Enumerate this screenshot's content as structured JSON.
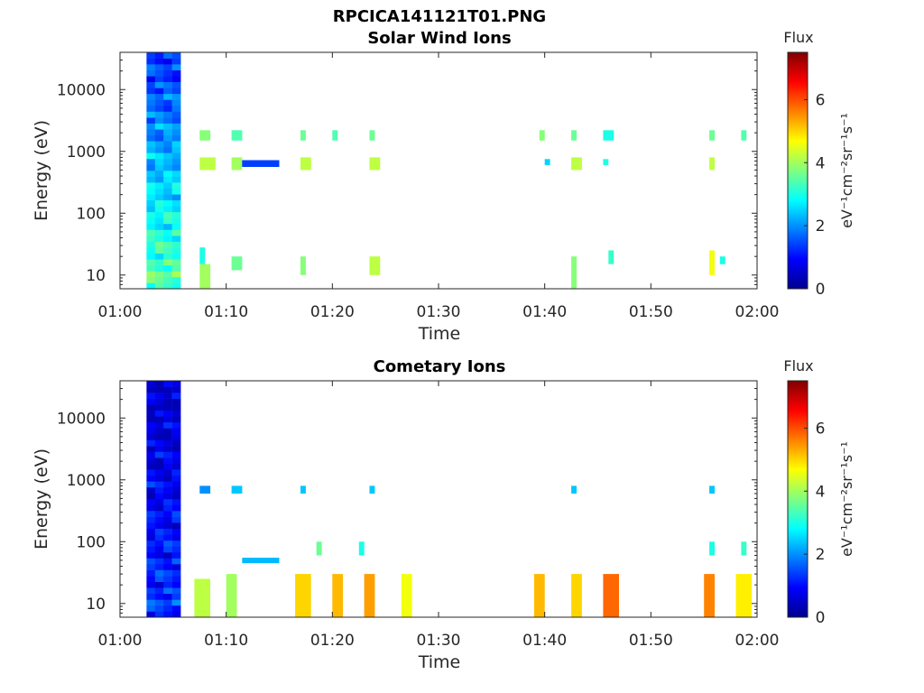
{
  "figure": {
    "title": "RPCICA141121T01.PNG"
  },
  "chart_data": [
    {
      "type": "heatmap",
      "title": "Solar Wind Ions",
      "xlabel": "Time",
      "ylabel": "Energy (eV)",
      "x_ticks": [
        "01:00",
        "01:10",
        "01:20",
        "01:30",
        "01:40",
        "01:50",
        "02:00"
      ],
      "y_ticks": [
        "10",
        "100",
        "1000",
        "10000"
      ],
      "y_scale": "log",
      "xlim": [
        "01:00",
        "02:00"
      ],
      "ylim": [
        6,
        40000
      ],
      "colorbar": {
        "label_top": "Flux",
        "units": "eV⁻¹cm⁻²sr⁻¹s⁻¹",
        "range": [
          0,
          7.5
        ],
        "ticks": [
          "0",
          "2",
          "4",
          "6"
        ],
        "colormap": "jet"
      },
      "cells": [
        {
          "t0": "01:02.5",
          "t1": "01:05.7",
          "e0": 6,
          "e1": 40000,
          "v": 2.6,
          "kind": "column"
        },
        {
          "t0": "01:07.5",
          "t1": "01:09",
          "e0": 500,
          "e1": 800,
          "v": 4.2
        },
        {
          "t0": "01:07.5",
          "t1": "01:08.5",
          "e0": 1500,
          "e1": 2200,
          "v": 3.8
        },
        {
          "t0": "01:10.5",
          "t1": "01:11.5",
          "e0": 500,
          "e1": 800,
          "v": 4.0
        },
        {
          "t0": "01:10.5",
          "t1": "01:11.5",
          "e0": 1500,
          "e1": 2200,
          "v": 3.4
        },
        {
          "t0": "01:11.5",
          "t1": "01:15",
          "e0": 560,
          "e1": 720,
          "v": 1.4
        },
        {
          "t0": "01:17",
          "t1": "01:18",
          "e0": 500,
          "e1": 800,
          "v": 4.2
        },
        {
          "t0": "01:17",
          "t1": "01:17.5",
          "e0": 1500,
          "e1": 2200,
          "v": 3.6
        },
        {
          "t0": "01:20",
          "t1": "01:20.5",
          "e0": 1500,
          "e1": 2200,
          "v": 3.4
        },
        {
          "t0": "01:23.5",
          "t1": "01:24.5",
          "e0": 500,
          "e1": 800,
          "v": 4.2
        },
        {
          "t0": "01:23.5",
          "t1": "01:24",
          "e0": 1500,
          "e1": 2200,
          "v": 3.6
        },
        {
          "t0": "01:39.5",
          "t1": "01:40",
          "e0": 1500,
          "e1": 2200,
          "v": 3.8
        },
        {
          "t0": "01:40",
          "t1": "01:40.5",
          "e0": 600,
          "e1": 750,
          "v": 2.5
        },
        {
          "t0": "01:42.5",
          "t1": "01:43.5",
          "e0": 500,
          "e1": 800,
          "v": 4.2
        },
        {
          "t0": "01:42.5",
          "t1": "01:43",
          "e0": 1500,
          "e1": 2200,
          "v": 3.6
        },
        {
          "t0": "01:45.5",
          "t1": "01:46.5",
          "e0": 1500,
          "e1": 2200,
          "v": 3.0
        },
        {
          "t0": "01:45.5",
          "t1": "01:46",
          "e0": 600,
          "e1": 750,
          "v": 3.0
        },
        {
          "t0": "01:55.5",
          "t1": "01:56",
          "e0": 500,
          "e1": 800,
          "v": 4.2
        },
        {
          "t0": "01:55.5",
          "t1": "01:56",
          "e0": 1500,
          "e1": 2200,
          "v": 3.6
        },
        {
          "t0": "01:58.5",
          "t1": "01:59",
          "e0": 1500,
          "e1": 2200,
          "v": 3.4
        },
        {
          "t0": "01:07.5",
          "t1": "01:08",
          "e0": 15,
          "e1": 28,
          "v": 3.0
        },
        {
          "t0": "01:07.5",
          "t1": "01:08.5",
          "e0": 6,
          "e1": 15,
          "v": 4.0
        },
        {
          "t0": "01:10.5",
          "t1": "01:11.5",
          "e0": 12,
          "e1": 20,
          "v": 3.6
        },
        {
          "t0": "01:17",
          "t1": "01:17.5",
          "e0": 10,
          "e1": 20,
          "v": 3.8
        },
        {
          "t0": "01:23.5",
          "t1": "01:24.5",
          "e0": 10,
          "e1": 20,
          "v": 4.2
        },
        {
          "t0": "01:42.5",
          "t1": "01:43",
          "e0": 6,
          "e1": 20,
          "v": 3.8
        },
        {
          "t0": "01:46",
          "t1": "01:46.5",
          "e0": 15,
          "e1": 25,
          "v": 3.2
        },
        {
          "t0": "01:55.5",
          "t1": "01:56",
          "e0": 10,
          "e1": 25,
          "v": 4.6
        },
        {
          "t0": "01:56.5",
          "t1": "01:57",
          "e0": 15,
          "e1": 20,
          "v": 3.0
        }
      ]
    },
    {
      "type": "heatmap",
      "title": "Cometary Ions",
      "xlabel": "Time",
      "ylabel": "Energy (eV)",
      "x_ticks": [
        "01:00",
        "01:10",
        "01:20",
        "01:30",
        "01:40",
        "01:50",
        "02:00"
      ],
      "y_ticks": [
        "10",
        "100",
        "1000",
        "10000"
      ],
      "y_scale": "log",
      "xlim": [
        "01:00",
        "02:00"
      ],
      "ylim": [
        6,
        40000
      ],
      "colorbar": {
        "label_top": "Flux",
        "units": "eV⁻¹cm⁻²sr⁻¹s⁻¹",
        "range": [
          0,
          7.5
        ],
        "ticks": [
          "0",
          "2",
          "4",
          "6"
        ],
        "colormap": "jet"
      },
      "cells": [
        {
          "t0": "01:02.5",
          "t1": "01:05.7",
          "e0": 6,
          "e1": 40000,
          "v": 1.0,
          "kind": "column"
        },
        {
          "t0": "01:07.5",
          "t1": "01:08.5",
          "e0": 600,
          "e1": 800,
          "v": 2.0
        },
        {
          "t0": "01:10.5",
          "t1": "01:11.5",
          "e0": 600,
          "e1": 800,
          "v": 2.4
        },
        {
          "t0": "01:11.5",
          "t1": "01:15",
          "e0": 45,
          "e1": 55,
          "v": 2.3
        },
        {
          "t0": "01:17",
          "t1": "01:17.5",
          "e0": 600,
          "e1": 800,
          "v": 2.4
        },
        {
          "t0": "01:23.5",
          "t1": "01:24",
          "e0": 600,
          "e1": 800,
          "v": 2.4
        },
        {
          "t0": "01:42.5",
          "t1": "01:43",
          "e0": 600,
          "e1": 800,
          "v": 2.4
        },
        {
          "t0": "01:55.5",
          "t1": "01:56",
          "e0": 600,
          "e1": 800,
          "v": 2.4
        },
        {
          "t0": "01:07",
          "t1": "01:08.5",
          "e0": 6,
          "e1": 25,
          "v": 4.2
        },
        {
          "t0": "01:10",
          "t1": "01:11",
          "e0": 6,
          "e1": 30,
          "v": 4.0
        },
        {
          "t0": "01:16.5",
          "t1": "01:18",
          "e0": 6,
          "e1": 30,
          "v": 5.0
        },
        {
          "t0": "01:20",
          "t1": "01:21",
          "e0": 6,
          "e1": 30,
          "v": 5.2
        },
        {
          "t0": "01:23",
          "t1": "01:24",
          "e0": 6,
          "e1": 30,
          "v": 5.4
        },
        {
          "t0": "01:26.5",
          "t1": "01:27.5",
          "e0": 6,
          "e1": 30,
          "v": 4.6
        },
        {
          "t0": "01:39",
          "t1": "01:40",
          "e0": 6,
          "e1": 30,
          "v": 5.2
        },
        {
          "t0": "01:42.5",
          "t1": "01:43.5",
          "e0": 6,
          "e1": 30,
          "v": 5.0
        },
        {
          "t0": "01:45.5",
          "t1": "01:47",
          "e0": 6,
          "e1": 30,
          "v": 5.8
        },
        {
          "t0": "01:55",
          "t1": "01:56",
          "e0": 6,
          "e1": 30,
          "v": 5.6
        },
        {
          "t0": "01:58",
          "t1": "01:59.5",
          "e0": 6,
          "e1": 30,
          "v": 4.8
        },
        {
          "t0": "01:18.5",
          "t1": "01:19",
          "e0": 60,
          "e1": 100,
          "v": 3.6
        },
        {
          "t0": "01:22.5",
          "t1": "01:23",
          "e0": 60,
          "e1": 100,
          "v": 3.0
        },
        {
          "t0": "01:55.5",
          "t1": "01:56",
          "e0": 60,
          "e1": 100,
          "v": 3.0
        },
        {
          "t0": "01:58.5",
          "t1": "01:59",
          "e0": 60,
          "e1": 100,
          "v": 3.2
        }
      ]
    }
  ]
}
